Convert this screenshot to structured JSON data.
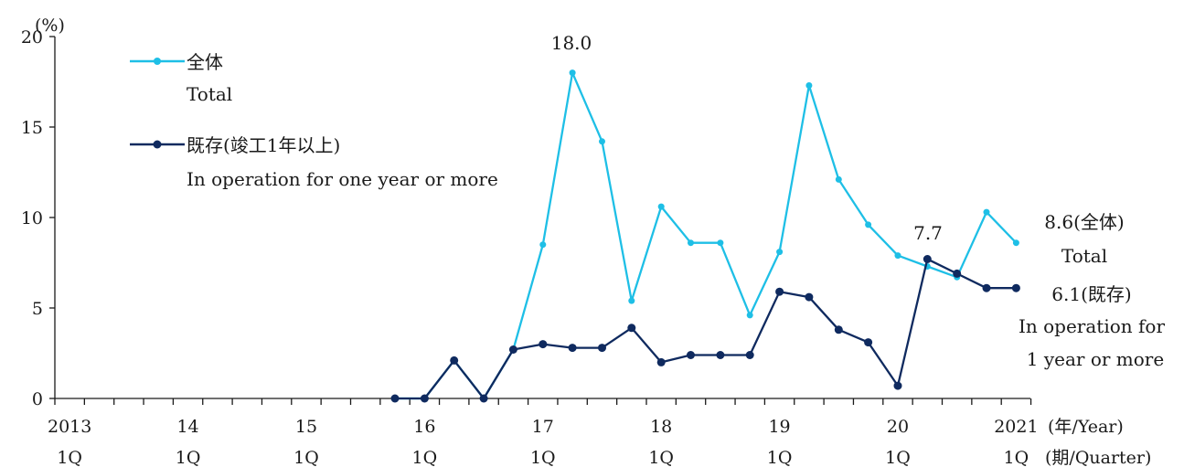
{
  "chart_data": {
    "type": "line",
    "y_unit": "(%)",
    "ylim": [
      0,
      20
    ],
    "yticks": [
      0,
      5,
      10,
      15,
      20
    ],
    "x_year_labels": [
      "2013",
      "14",
      "15",
      "16",
      "17",
      "18",
      "19",
      "20",
      "2021"
    ],
    "x_quarter_label": "1Q",
    "x_axis_year_label": "(年/Year)",
    "x_axis_quarter_label": "(期/Quarter)",
    "x_periods": [
      "2013Q1",
      "2013Q2",
      "2013Q3",
      "2013Q4",
      "2014Q1",
      "2014Q2",
      "2014Q3",
      "2014Q4",
      "2015Q1",
      "2015Q2",
      "2015Q3",
      "2015Q4",
      "2016Q1",
      "2016Q2",
      "2016Q3",
      "2016Q4",
      "2017Q1",
      "2017Q2",
      "2017Q3",
      "2017Q4",
      "2018Q1",
      "2018Q2",
      "2018Q3",
      "2018Q4",
      "2019Q1",
      "2019Q2",
      "2019Q3",
      "2019Q4",
      "2020Q1",
      "2020Q2",
      "2020Q3",
      "2020Q4",
      "2021Q1"
    ],
    "series": [
      {
        "name": "全体",
        "name_en": "Total",
        "color": "#1ebfe6",
        "x": [
          "2015Q4",
          "2016Q1",
          "2016Q2",
          "2016Q3",
          "2016Q4",
          "2017Q1",
          "2017Q2",
          "2017Q3",
          "2017Q4",
          "2018Q1",
          "2018Q2",
          "2018Q3",
          "2018Q4",
          "2019Q1",
          "2019Q2",
          "2019Q3",
          "2019Q4",
          "2020Q1",
          "2020Q2",
          "2020Q3",
          "2020Q4",
          "2021Q1"
        ],
        "values": [
          0,
          0,
          2.1,
          0,
          2.7,
          8.5,
          18.0,
          14.2,
          5.4,
          10.6,
          8.6,
          8.6,
          4.6,
          8.1,
          17.3,
          12.1,
          9.6,
          7.9,
          7.3,
          6.7,
          10.3,
          8.6
        ]
      },
      {
        "name": "既存(竣工1年以上)",
        "name_en": "In operation for one year or more",
        "color": "#0f2a5f",
        "x": [
          "2015Q4",
          "2016Q1",
          "2016Q2",
          "2016Q3",
          "2016Q4",
          "2017Q1",
          "2017Q2",
          "2017Q3",
          "2017Q4",
          "2018Q1",
          "2018Q2",
          "2018Q3",
          "2018Q4",
          "2019Q1",
          "2019Q2",
          "2019Q3",
          "2019Q4",
          "2020Q1",
          "2020Q2",
          "2020Q3",
          "2020Q4",
          "2021Q1"
        ],
        "values": [
          0,
          0,
          2.1,
          0,
          2.7,
          3.0,
          2.8,
          2.8,
          3.9,
          2.0,
          2.4,
          2.4,
          2.4,
          5.9,
          5.6,
          3.8,
          3.1,
          0.7,
          7.7,
          6.9,
          6.1,
          6.1
        ]
      }
    ],
    "annotations": {
      "peak_total": "18.0",
      "peak_existing": "7.7",
      "end_total": "8.6(全体)",
      "end_total_en": "Total",
      "end_existing": "6.1(既存)",
      "end_existing_en_1": "In operation for",
      "end_existing_en_2": "1 year or more"
    }
  }
}
